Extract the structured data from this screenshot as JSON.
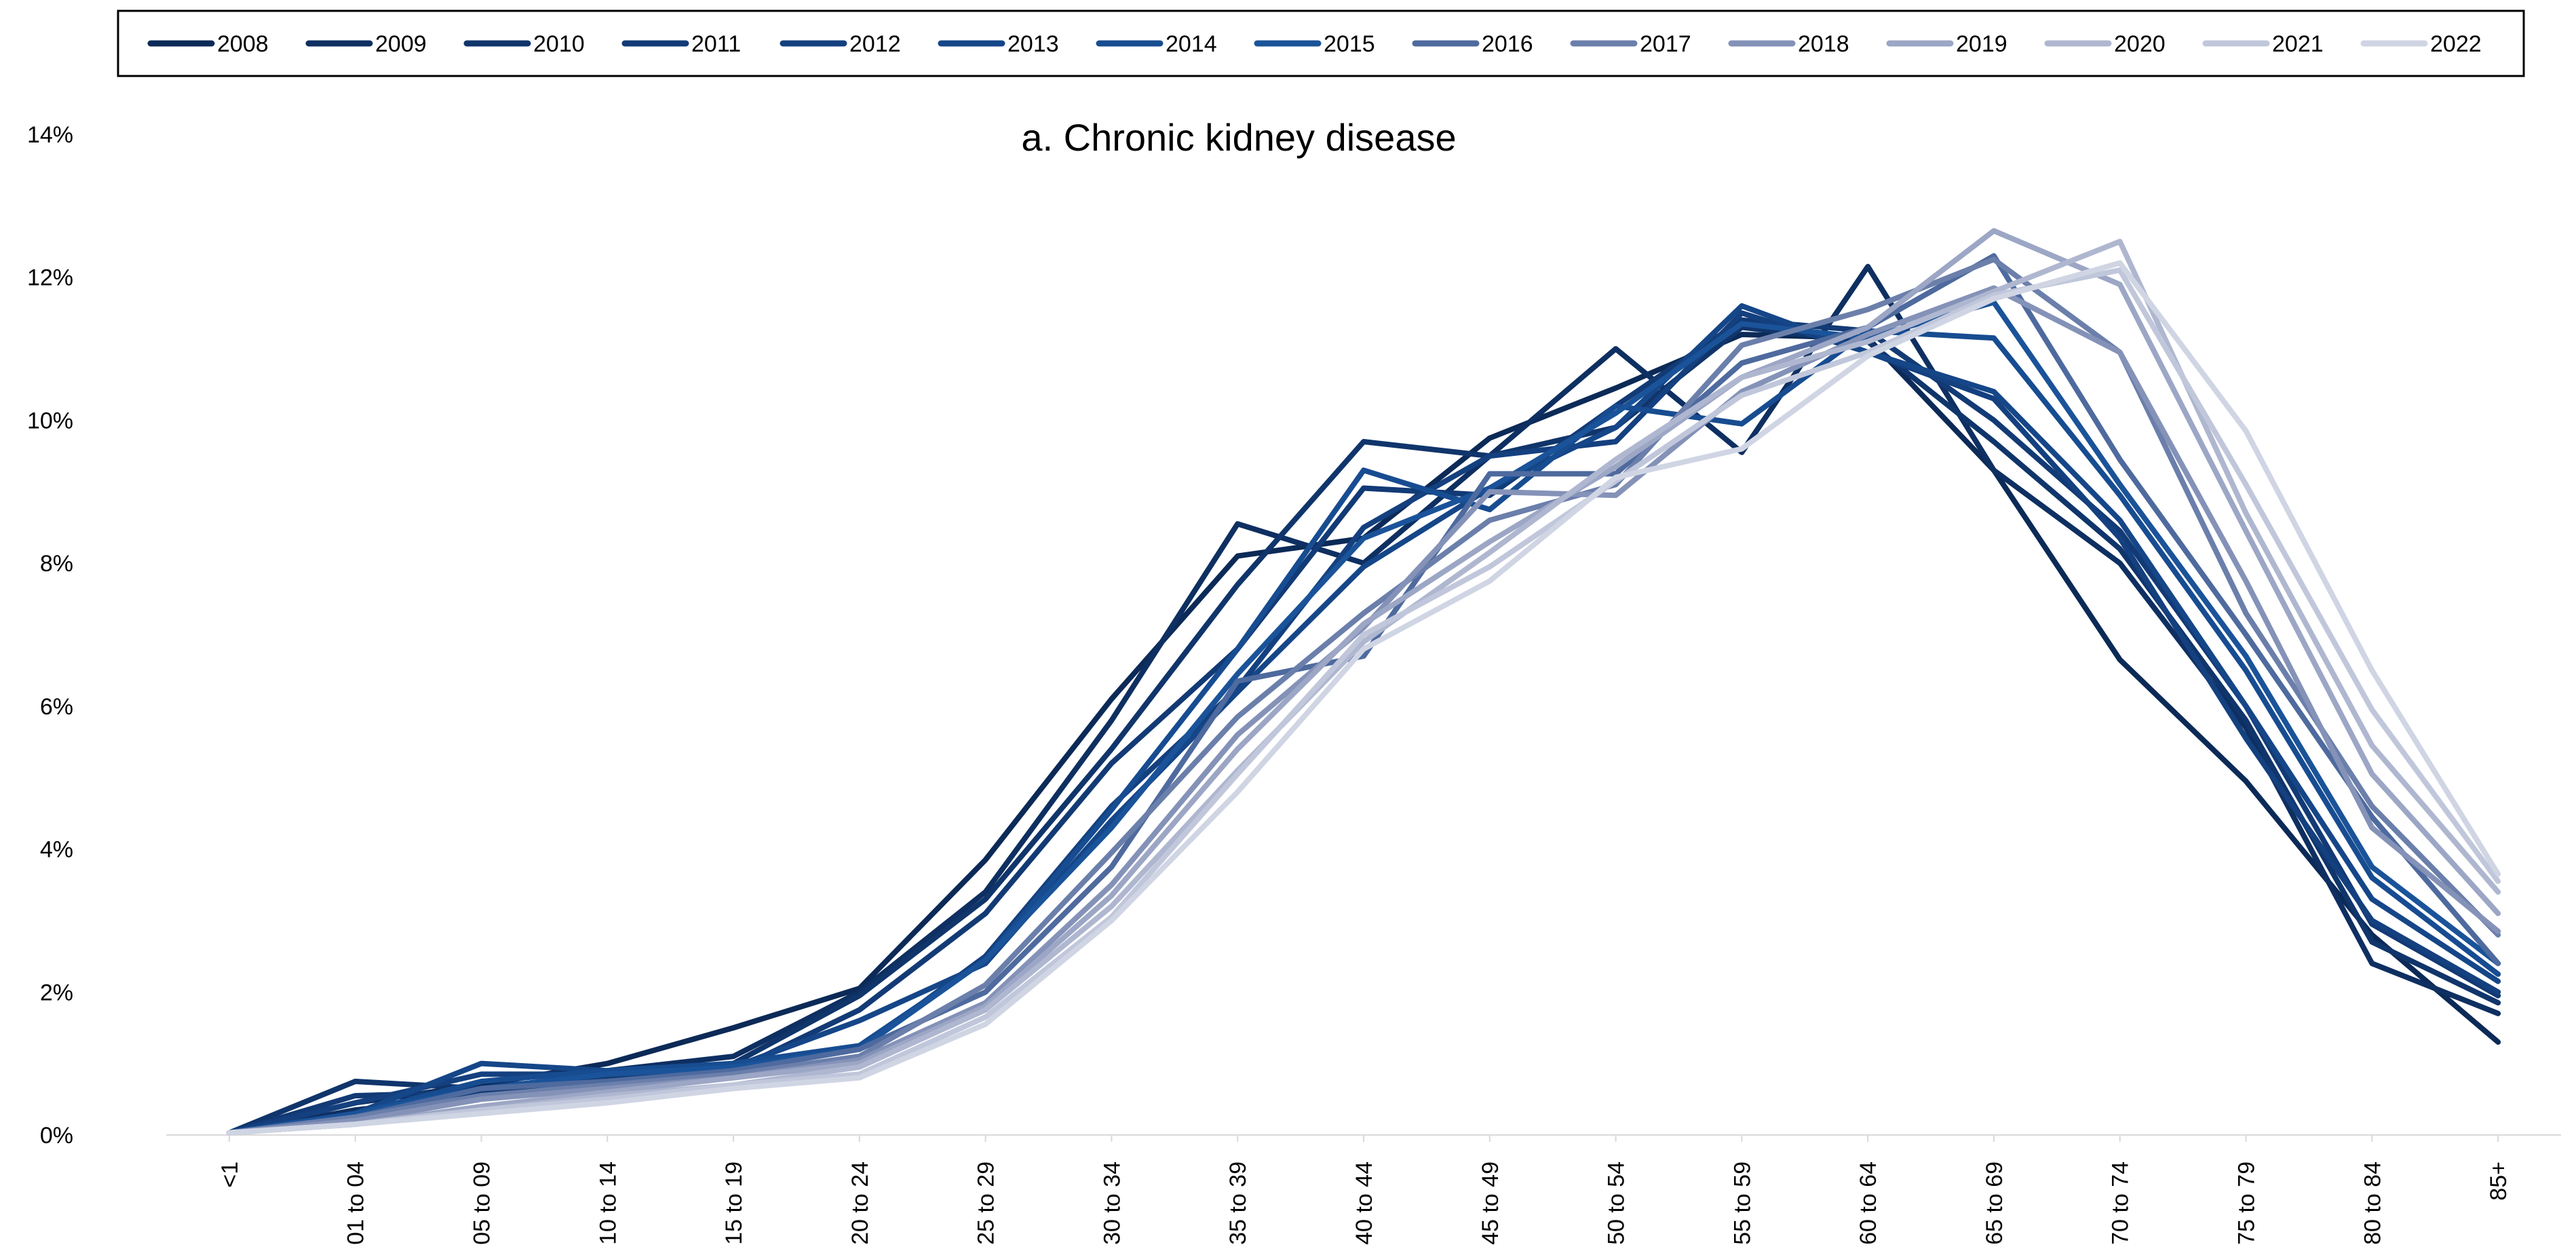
{
  "chart_data": {
    "type": "line",
    "title": "a. Chronic kidney disease",
    "xlabel": "",
    "ylabel": "",
    "ylim": [
      0,
      0.14
    ],
    "y_ticks": [
      "0%",
      "2%",
      "4%",
      "6%",
      "8%",
      "10%",
      "12%",
      "14%"
    ],
    "y_tick_values": [
      0,
      0.02,
      0.04,
      0.06,
      0.08,
      0.1,
      0.12,
      0.14
    ],
    "grid": false,
    "legend_position": "top",
    "categories": [
      "<1",
      "01 to 04",
      "05 to 09",
      "10 to 14",
      "15 to 19",
      "20 to 24",
      "25 to 29",
      "30 to 34",
      "35 to 39",
      "40 to 44",
      "45 to 49",
      "50 to 54",
      "55 to 59",
      "60 to 64",
      "65 to 69",
      "70 to 74",
      "75 to 79",
      "80 to 84",
      "85+"
    ],
    "series": [
      {
        "name": "2008",
        "color": "#0c2a57",
        "values": [
          0.0003,
          0.0045,
          0.007,
          0.01,
          0.015,
          0.0205,
          0.0385,
          0.061,
          0.081,
          0.0835,
          0.0975,
          0.1045,
          0.112,
          0.1115,
          0.093,
          0.0665,
          0.0495,
          0.028,
          0.013
        ]
      },
      {
        "name": "2009",
        "color": "#0e2f61",
        "values": [
          0.0003,
          0.0035,
          0.0055,
          0.009,
          0.011,
          0.02,
          0.034,
          0.058,
          0.0855,
          0.08,
          0.095,
          0.11,
          0.0955,
          0.1215,
          0.093,
          0.08,
          0.057,
          0.024,
          0.017
        ]
      },
      {
        "name": "2010",
        "color": "#10356b",
        "values": [
          0.0003,
          0.0075,
          0.0065,
          0.0085,
          0.01,
          0.0195,
          0.033,
          0.054,
          0.077,
          0.097,
          0.095,
          0.099,
          0.113,
          0.111,
          0.097,
          0.082,
          0.058,
          0.027,
          0.0185
        ]
      },
      {
        "name": "2011",
        "color": "#123a75",
        "values": [
          0.0003,
          0.0055,
          0.006,
          0.008,
          0.009,
          0.0175,
          0.031,
          0.052,
          0.068,
          0.0905,
          0.0895,
          0.102,
          0.114,
          0.1125,
          0.1,
          0.0845,
          0.06,
          0.0295,
          0.0195
        ]
      },
      {
        "name": "2012",
        "color": "#14407f",
        "values": [
          0.0003,
          0.0045,
          0.0085,
          0.0085,
          0.009,
          0.012,
          0.025,
          0.046,
          0.0625,
          0.085,
          0.095,
          0.097,
          0.115,
          0.1095,
          0.103,
          0.0835,
          0.0555,
          0.03,
          0.02
        ]
      },
      {
        "name": "2013",
        "color": "#154688",
        "values": [
          0.0003,
          0.003,
          0.01,
          0.009,
          0.0095,
          0.016,
          0.024,
          0.044,
          0.062,
          0.0795,
          0.0905,
          0.099,
          0.116,
          0.1095,
          0.104,
          0.086,
          0.06,
          0.033,
          0.0215
        ]
      },
      {
        "name": "2014",
        "color": "#174c91",
        "values": [
          0.0003,
          0.003,
          0.0075,
          0.009,
          0.01,
          0.0125,
          0.0245,
          0.0455,
          0.068,
          0.093,
          0.0875,
          0.102,
          0.0995,
          0.1125,
          0.1115,
          0.0895,
          0.065,
          0.036,
          0.0225
        ]
      },
      {
        "name": "2015",
        "color": "#1a5399",
        "values": [
          0.0003,
          0.003,
          0.0065,
          0.0085,
          0.0095,
          0.012,
          0.0245,
          0.043,
          0.0645,
          0.0835,
          0.0905,
          0.101,
          0.1135,
          0.1115,
          0.1165,
          0.091,
          0.067,
          0.0375,
          0.024
        ]
      },
      {
        "name": "2016",
        "color": "#4e6a9e",
        "values": [
          0.0003,
          0.0025,
          0.0065,
          0.0075,
          0.009,
          0.012,
          0.02,
          0.0375,
          0.0635,
          0.067,
          0.0925,
          0.0925,
          0.108,
          0.113,
          0.123,
          0.0945,
          0.07,
          0.0445,
          0.024
        ]
      },
      {
        "name": "2017",
        "color": "#6b7fab",
        "values": [
          0.0003,
          0.0025,
          0.0055,
          0.007,
          0.0085,
          0.011,
          0.021,
          0.0395,
          0.0585,
          0.073,
          0.086,
          0.091,
          0.1105,
          0.1155,
          0.1225,
          0.1095,
          0.073,
          0.046,
          0.028
        ]
      },
      {
        "name": "2018",
        "color": "#8592b8",
        "values": [
          0.0003,
          0.002,
          0.005,
          0.0065,
          0.008,
          0.0105,
          0.0185,
          0.035,
          0.056,
          0.071,
          0.09,
          0.0895,
          0.104,
          0.112,
          0.1185,
          0.1095,
          0.0775,
          0.043,
          0.0285
        ]
      },
      {
        "name": "2019",
        "color": "#9ca6c5",
        "values": [
          0.0003,
          0.0015,
          0.004,
          0.006,
          0.008,
          0.01,
          0.018,
          0.0335,
          0.054,
          0.0715,
          0.083,
          0.0935,
          0.106,
          0.113,
          0.1265,
          0.119,
          0.0845,
          0.0505,
          0.031
        ]
      },
      {
        "name": "2020",
        "color": "#afb7d0",
        "values": [
          0.0003,
          0.0015,
          0.0035,
          0.0055,
          0.007,
          0.0095,
          0.0175,
          0.032,
          0.051,
          0.069,
          0.0815,
          0.0945,
          0.106,
          0.111,
          0.118,
          0.125,
          0.087,
          0.0545,
          0.034
        ]
      },
      {
        "name": "2021",
        "color": "#c1c7db",
        "values": [
          0.0003,
          0.0015,
          0.0035,
          0.005,
          0.007,
          0.0085,
          0.0165,
          0.0305,
          0.0505,
          0.07,
          0.0795,
          0.0915,
          0.1035,
          0.1095,
          0.1175,
          0.121,
          0.091,
          0.0595,
          0.0355
        ]
      },
      {
        "name": "2022",
        "color": "#d0d5e4",
        "values": [
          0.0003,
          0.0015,
          0.003,
          0.0045,
          0.0065,
          0.008,
          0.0155,
          0.03,
          0.048,
          0.068,
          0.0775,
          0.092,
          0.096,
          0.109,
          0.117,
          0.122,
          0.0985,
          0.065,
          0.0365
        ]
      }
    ]
  }
}
